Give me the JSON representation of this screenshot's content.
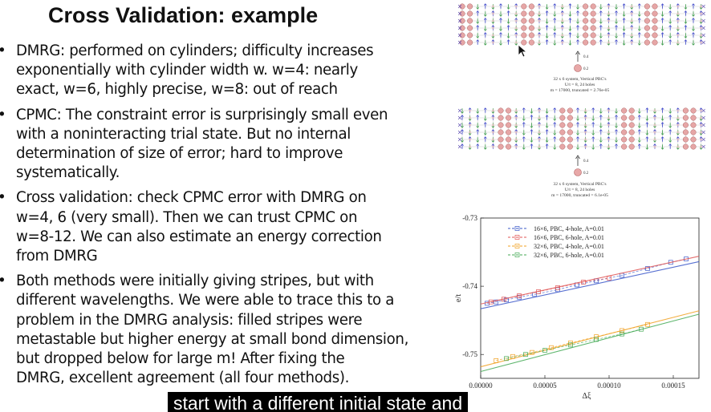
{
  "slide": {
    "title": "Cross Validation:  example",
    "bullets": [
      [
        "DMRG:  performed on cylinders; difficulty increases",
        "exponentially with cylinder width w.  w=4:  nearly",
        "exact,  w=6, highly precise,  w=8: out of reach"
      ],
      [
        "CPMC: The constraint error is surprisingly small even",
        "with a noninteracting trial state.   But no internal",
        "determination of size of error;  hard to improve",
        "systematically."
      ],
      [
        "Cross validation: check CPMC error with DMRG on",
        "w=4, 6  (very small). Then we can trust CPMC on",
        "w=8-12. We can also estimate an energy correction",
        "from DMRG"
      ],
      [
        "Both methods were initially giving stripes, but with",
        "different wavelengths. We were able to trace this to a",
        "problem in the DMRG analysis: filled stripes were",
        "metastable but higher energy at small bond dimension,",
        "but dropped below for large m!  After fixing the",
        "DMRG, excellent agreement (all four methods)."
      ]
    ]
  },
  "lattice1": {
    "legend_arrow": "0.4",
    "legend_circle": "0.2",
    "caption": [
      "32 x 6 system, Vertical PBC's",
      "U/t = 8,  24 holes",
      "m = 17000, truncated = 2.76e-05"
    ]
  },
  "lattice2": {
    "legend_arrow": "0.4",
    "legend_circle": "0.2",
    "caption": [
      "32 x 6 system, Vertical PBC's",
      "U/t = 8,  24 holes",
      "m = 17000, truncated = 6.1e-05"
    ]
  },
  "caption_overlay": "start with a different initial state and",
  "chart_data": {
    "type": "scatter",
    "xlabel": "Δξ",
    "ylabel": "e/t",
    "xlim": [
      0,
      0.00017
    ],
    "ylim": [
      -0.7535,
      -0.73
    ],
    "xticks": [
      "0.00000",
      "0.00005",
      "0.00010",
      "0.00015"
    ],
    "yticks": [
      "-0.73",
      "-0.74",
      "-0.75"
    ],
    "legend": "top-left",
    "series": [
      {
        "name": "16×6, PBC, 4-hole, A=0.01",
        "color": "#3b58c9",
        "points": [
          [
            5e-06,
            -0.7425
          ],
          [
            1.2e-05,
            -0.7423
          ],
          [
            2e-05,
            -0.742
          ],
          [
            3e-05,
            -0.7416
          ],
          [
            4.2e-05,
            -0.7412
          ],
          [
            6e-05,
            -0.7405
          ],
          [
            7.5e-05,
            -0.7398
          ],
          [
            9e-05,
            -0.7392
          ],
          [
            0.00011,
            -0.7384
          ],
          [
            0.00013,
            -0.7374
          ],
          [
            0.000148,
            -0.7365
          ],
          [
            0.00016,
            -0.736
          ]
        ],
        "fit": [
          [
            0,
            -0.7433
          ],
          [
            0.00017,
            -0.7364
          ]
        ]
      },
      {
        "name": "16×6, PBC, 6-hole, A=0.01",
        "color": "#e05555",
        "points": [
          [
            8e-06,
            -0.7423
          ],
          [
            1.8e-05,
            -0.7419
          ],
          [
            3e-05,
            -0.7414
          ],
          [
            4.5e-05,
            -0.7408
          ],
          [
            6e-05,
            -0.7402
          ],
          [
            8e-05,
            -0.7394
          ],
          [
            0.0001,
            -0.7388
          ]
        ],
        "fit": [
          [
            0,
            -0.7426
          ],
          [
            0.00017,
            -0.7356
          ]
        ]
      },
      {
        "name": "32×6, PBC, 4-hole, A=0.01",
        "color": "#f0a020",
        "points": [
          [
            1.2e-05,
            -0.7509
          ],
          [
            2.5e-05,
            -0.7503
          ],
          [
            4e-05,
            -0.7497
          ],
          [
            5.5e-05,
            -0.749
          ],
          [
            7e-05,
            -0.7483
          ],
          [
            9e-05,
            -0.7474
          ],
          [
            0.00011,
            -0.7465
          ],
          [
            0.00013,
            -0.7456
          ]
        ],
        "fit": [
          [
            0,
            -0.7518
          ],
          [
            0.00017,
            -0.7436
          ]
        ]
      },
      {
        "name": "32×6, PBC, 6-hole, A=0.01",
        "color": "#44aa55",
        "points": [
          [
            2e-05,
            -0.7506
          ],
          [
            3.5e-05,
            -0.75
          ],
          [
            5e-05,
            -0.7494
          ],
          [
            7e-05,
            -0.7486
          ],
          [
            9e-05,
            -0.7478
          ],
          [
            0.00011,
            -0.747
          ],
          [
            0.000125,
            -0.7463
          ]
        ],
        "fit": [
          [
            0,
            -0.7525
          ],
          [
            0.00017,
            -0.7441
          ]
        ]
      }
    ]
  }
}
